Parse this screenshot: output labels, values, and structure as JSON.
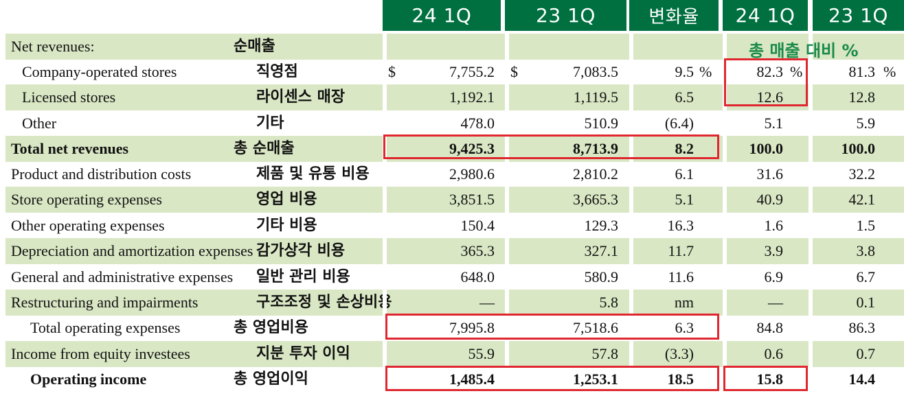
{
  "header": {
    "col1": "24 1Q",
    "col2": "23 1Q",
    "col3": "변화율",
    "col4": "24 1Q",
    "col5": "23 1Q"
  },
  "pct_of_total_label": "총 매출 대비 %",
  "rows": [
    {
      "en": "Net revenues:",
      "ko": "순매출",
      "v1": "",
      "v2": "",
      "chg": "",
      "p1": "",
      "p2": ""
    },
    {
      "en": "Company-operated stores",
      "ko": "직영점",
      "v1": "7,755.2",
      "v2": "7,083.5",
      "chg": "9.5",
      "p1": "82.3",
      "p2": "81.3",
      "cur1": "$",
      "cur2": "$",
      "pctsym": "%"
    },
    {
      "en": "Licensed stores",
      "ko": "라이센스 매장",
      "v1": "1,192.1",
      "v2": "1,119.5",
      "chg": "6.5",
      "p1": "12.6",
      "p2": "12.8"
    },
    {
      "en": "Other",
      "ko": "기타",
      "v1": "478.0",
      "v2": "510.9",
      "chg": "(6.4)",
      "p1": "5.1",
      "p2": "5.9"
    },
    {
      "en": "Total net revenues",
      "ko": "총 순매출",
      "v1": "9,425.3",
      "v2": "8,713.9",
      "chg": "8.2",
      "p1": "100.0",
      "p2": "100.0"
    },
    {
      "en": "Product and distribution costs",
      "ko": "제품 및 유통 비용",
      "v1": "2,980.6",
      "v2": "2,810.2",
      "chg": "6.1",
      "p1": "31.6",
      "p2": "32.2"
    },
    {
      "en": "Store operating expenses",
      "ko": "영업 비용",
      "v1": "3,851.5",
      "v2": "3,665.3",
      "chg": "5.1",
      "p1": "40.9",
      "p2": "42.1"
    },
    {
      "en": "Other operating expenses",
      "ko": "기타 비용",
      "v1": "150.4",
      "v2": "129.3",
      "chg": "16.3",
      "p1": "1.6",
      "p2": "1.5"
    },
    {
      "en": "Depreciation and amortization expenses",
      "ko": "감가상각 비용",
      "v1": "365.3",
      "v2": "327.1",
      "chg": "11.7",
      "p1": "3.9",
      "p2": "3.8"
    },
    {
      "en": "General and administrative expenses",
      "ko": "일반 관리 비용",
      "v1": "648.0",
      "v2": "580.9",
      "chg": "11.6",
      "p1": "6.9",
      "p2": "6.7"
    },
    {
      "en": "Restructuring and impairments",
      "ko": "구조조정 및 손상비용",
      "v1": "—",
      "v2": "5.8",
      "chg": "nm",
      "p1": "—",
      "p2": "0.1"
    },
    {
      "en": "Total operating expenses",
      "ko": "총 영업비용",
      "v1": "7,995.8",
      "v2": "7,518.6",
      "chg": "6.3",
      "p1": "84.8",
      "p2": "86.3"
    },
    {
      "en": "Income from equity investees",
      "ko": "지분 투자 이익",
      "v1": "55.9",
      "v2": "57.8",
      "chg": "(3.3)",
      "p1": "0.6",
      "p2": "0.7"
    },
    {
      "en": "Operating income",
      "ko": "총 영업이익",
      "v1": "1,485.4",
      "v2": "1,253.1",
      "chg": "18.5",
      "p1": "15.8",
      "p2": "14.4"
    }
  ]
}
